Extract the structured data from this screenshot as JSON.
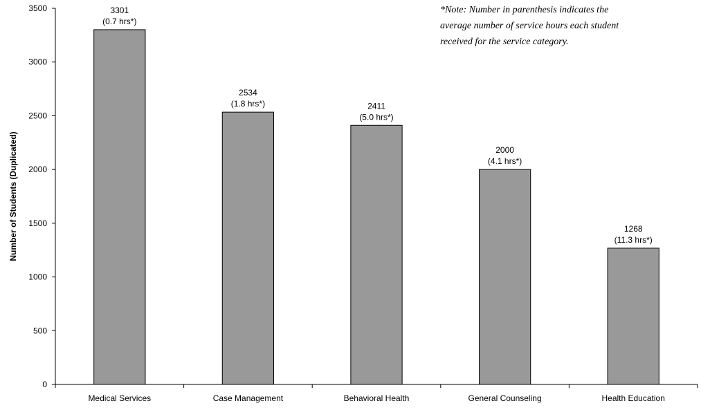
{
  "chart_data": {
    "type": "bar",
    "categories": [
      "Medical Services",
      "Case Management",
      "Behavioral Health",
      "General Counseling",
      "Health Education"
    ],
    "values": [
      3301,
      2534,
      2411,
      2000,
      1268
    ],
    "data_labels": [
      "3301",
      "2534",
      "2411",
      "2000",
      "1268"
    ],
    "data_sublabels": [
      "(0.7 hrs*)",
      "(1.8 hrs*)",
      "(5.0 hrs*)",
      "(4.1 hrs*)",
      "(11.3 hrs*)"
    ],
    "title": "",
    "xlabel": "",
    "ylabel": "Number of Students (Duplicated)",
    "ylim": [
      0,
      3500
    ],
    "yticks": [
      "0",
      "500",
      "1000",
      "1500",
      "2000",
      "2500",
      "3000",
      "3500"
    ],
    "grid": false,
    "bar_color": "#999999",
    "note": [
      "*Note: Number in parenthesis indicates the",
      "average number of service hours each student",
      "received for the service category."
    ]
  }
}
